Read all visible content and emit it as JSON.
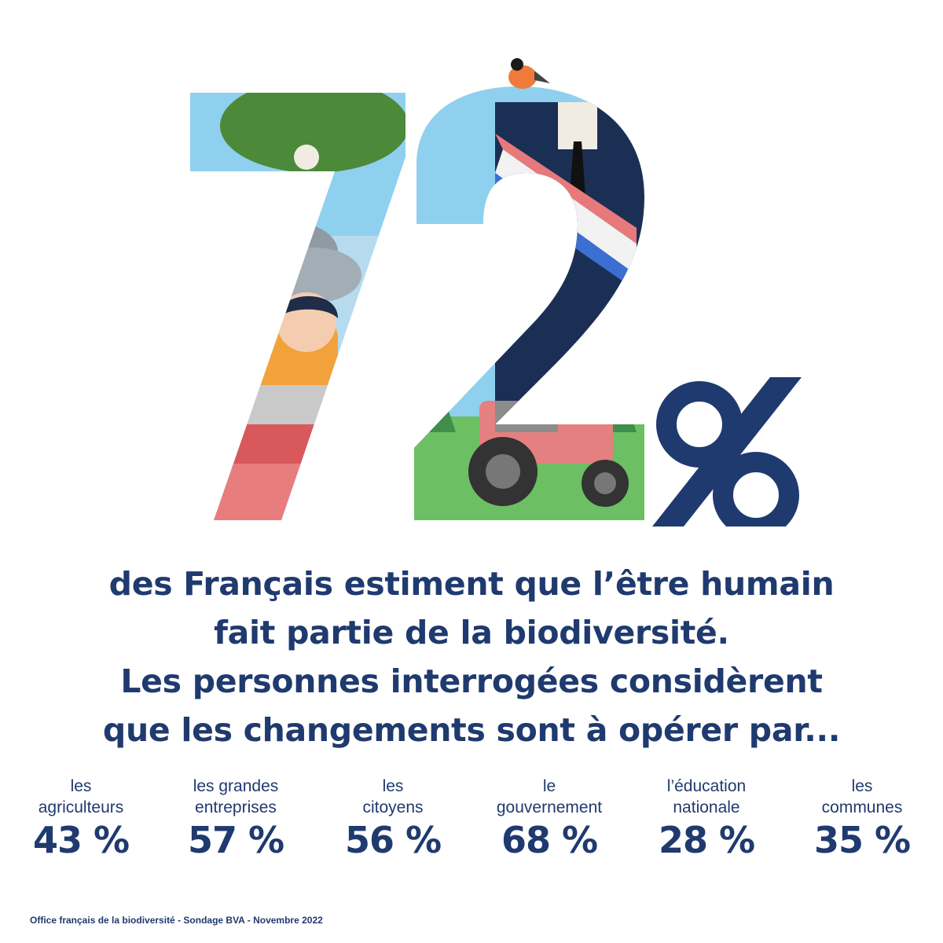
{
  "hero": {
    "number_text": "72",
    "percent_sign": "%",
    "colors": {
      "navy": "#1f3a6e",
      "sky": "#8fd0ef",
      "leaf_green": "#4c8a3a",
      "girl_shirt": "#f2a23a",
      "sash_red": "#e8797a",
      "sash_blue": "#3b6fd1",
      "tractor_red": "#e58080",
      "grass": "#6cbf63"
    }
  },
  "headline": {
    "line1": "des Français estiment que l’être humain",
    "line2": "fait partie de la biodiversité.",
    "line3": "Les personnes interrogées considèrent",
    "line4": "que les changements sont à opérer par..."
  },
  "stats": [
    {
      "label_line1": "les",
      "label_line2": "agriculteurs",
      "value": "43 %"
    },
    {
      "label_line1": "les grandes",
      "label_line2": "entreprises",
      "value": "57 %"
    },
    {
      "label_line1": "les",
      "label_line2": "citoyens",
      "value": "56 %"
    },
    {
      "label_line1": "le",
      "label_line2": "gouvernement",
      "value": "68 %"
    },
    {
      "label_line1": "l’éducation",
      "label_line2": "nationale",
      "value": "28 %"
    },
    {
      "label_line1": "les",
      "label_line2": "communes",
      "value": "35 %"
    }
  ],
  "source": "Office français de la biodiversité - Sondage BVA - Novembre 2022"
}
